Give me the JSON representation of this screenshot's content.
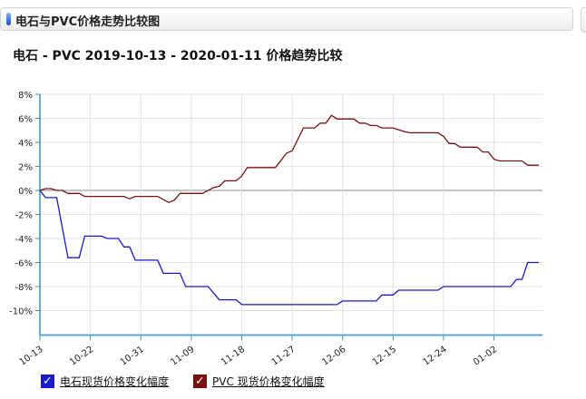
{
  "panel": {
    "title": "电石与PVC价格走势比较图"
  },
  "chart_data": {
    "type": "line",
    "title": "电石 - PVC 2019-10-13 - 2020-01-11 价格趋势比较",
    "xlabel": "",
    "ylabel": "",
    "x_range": [
      "2019-10-13",
      "2020-01-11"
    ],
    "x_ticks": [
      "10-13",
      "10-22",
      "10-31",
      "11-09",
      "11-18",
      "11-27",
      "12-06",
      "12-15",
      "12-24",
      "01-02"
    ],
    "ylim": [
      -12,
      8
    ],
    "y_ticks": [
      8,
      6,
      4,
      2,
      0,
      -2,
      -4,
      -6,
      -8,
      -10
    ],
    "y_tick_labels": [
      "8%",
      "6%",
      "4%",
      "2%",
      "0%",
      "-2%",
      "-4%",
      "-6%",
      "-8%",
      "-10%"
    ],
    "grid": true,
    "legend_position": "bottom-left",
    "series": [
      {
        "name": "电石现货价格变化幅度",
        "color": "#1a1acc",
        "points": [
          [
            "10-13",
            0
          ],
          [
            "10-14",
            -0.6
          ],
          [
            "10-16",
            -0.6
          ],
          [
            "10-18",
            -5.6
          ],
          [
            "10-20",
            -5.6
          ],
          [
            "10-21",
            -3.8
          ],
          [
            "10-24",
            -3.8
          ],
          [
            "10-25",
            -4.0
          ],
          [
            "10-27",
            -4.0
          ],
          [
            "10-28",
            -4.7
          ],
          [
            "10-29",
            -4.7
          ],
          [
            "10-30",
            -5.8
          ],
          [
            "11-03",
            -5.8
          ],
          [
            "11-04",
            -6.9
          ],
          [
            "11-07",
            -6.9
          ],
          [
            "11-08",
            -8.0
          ],
          [
            "11-12",
            -8.0
          ],
          [
            "11-14",
            -9.1
          ],
          [
            "11-17",
            -9.1
          ],
          [
            "11-18",
            -9.5
          ],
          [
            "12-05",
            -9.5
          ],
          [
            "12-06",
            -9.2
          ],
          [
            "12-12",
            -9.2
          ],
          [
            "12-13",
            -8.7
          ],
          [
            "12-15",
            -8.7
          ],
          [
            "12-16",
            -8.3
          ],
          [
            "12-23",
            -8.3
          ],
          [
            "12-24",
            -8.0
          ],
          [
            "01-05",
            -8.0
          ],
          [
            "01-06",
            -7.4
          ],
          [
            "01-07",
            -7.4
          ],
          [
            "01-08",
            -6.0
          ],
          [
            "01-10",
            -6.0
          ]
        ]
      },
      {
        "name": "PVC 现货价格变化幅度",
        "color": "#7a1010",
        "points": [
          [
            "10-13",
            0
          ],
          [
            "10-14",
            0.15
          ],
          [
            "10-15",
            0.15
          ],
          [
            "10-16",
            0
          ],
          [
            "10-17",
            0
          ],
          [
            "10-18",
            -0.25
          ],
          [
            "10-20",
            -0.25
          ],
          [
            "10-21",
            -0.5
          ],
          [
            "10-28",
            -0.5
          ],
          [
            "10-29",
            -0.7
          ],
          [
            "10-30",
            -0.5
          ],
          [
            "11-03",
            -0.5
          ],
          [
            "11-04",
            -0.75
          ],
          [
            "11-05",
            -1.0
          ],
          [
            "11-06",
            -0.8
          ],
          [
            "11-07",
            -0.25
          ],
          [
            "11-11",
            -0.25
          ],
          [
            "11-13",
            0.25
          ],
          [
            "11-14",
            0.35
          ],
          [
            "11-15",
            0.8
          ],
          [
            "11-17",
            0.8
          ],
          [
            "11-18",
            1.2
          ],
          [
            "11-19",
            1.9
          ],
          [
            "11-24",
            1.9
          ],
          [
            "11-26",
            3.1
          ],
          [
            "11-27",
            3.3
          ],
          [
            "11-29",
            5.2
          ],
          [
            "12-01",
            5.2
          ],
          [
            "12-02",
            5.6
          ],
          [
            "12-03",
            5.6
          ],
          [
            "12-04",
            6.25
          ],
          [
            "12-05",
            5.95
          ],
          [
            "12-08",
            5.95
          ],
          [
            "12-09",
            5.6
          ],
          [
            "12-10",
            5.6
          ],
          [
            "12-11",
            5.4
          ],
          [
            "12-12",
            5.4
          ],
          [
            "12-13",
            5.2
          ],
          [
            "12-15",
            5.2
          ],
          [
            "12-16",
            5.05
          ],
          [
            "12-17",
            4.9
          ],
          [
            "12-18",
            4.8
          ],
          [
            "12-23",
            4.8
          ],
          [
            "12-24",
            4.5
          ],
          [
            "12-25",
            3.9
          ],
          [
            "12-26",
            3.9
          ],
          [
            "12-27",
            3.6
          ],
          [
            "12-30",
            3.6
          ],
          [
            "12-31",
            3.2
          ],
          [
            "01-01",
            3.2
          ],
          [
            "01-02",
            2.6
          ],
          [
            "01-03",
            2.45
          ],
          [
            "01-07",
            2.45
          ],
          [
            "01-08",
            2.1
          ],
          [
            "01-10",
            2.1
          ]
        ]
      }
    ]
  }
}
